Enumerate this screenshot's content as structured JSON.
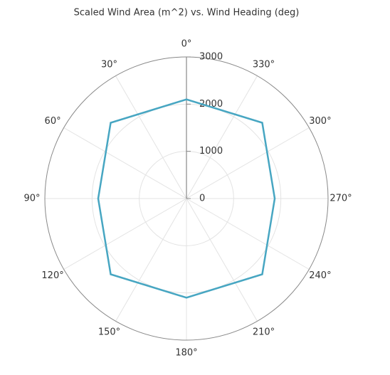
{
  "chart_data": {
    "type": "polar",
    "title": "Scaled Wind Area (m^2) vs. Wind Heading (deg)",
    "theta": [
      0,
      45,
      90,
      135,
      180,
      225,
      270,
      315
    ],
    "values": [
      2100,
      2270,
      1870,
      2270,
      2100,
      2270,
      1870,
      2270
    ],
    "color": "#47a6c2",
    "rlim": [
      0,
      3000
    ],
    "rticks": [
      0,
      1000,
      2000,
      3000
    ],
    "thetaticks": [
      {
        "value": 0,
        "label": "0°"
      },
      {
        "value": 30,
        "label": "30°"
      },
      {
        "value": 60,
        "label": "60°"
      },
      {
        "value": 90,
        "label": "90°"
      },
      {
        "value": 120,
        "label": "120°"
      },
      {
        "value": 150,
        "label": "150°"
      },
      {
        "value": 180,
        "label": "180°"
      },
      {
        "value": 210,
        "label": "210°"
      },
      {
        "value": 240,
        "label": "240°"
      },
      {
        "value": 270,
        "label": "270°"
      },
      {
        "value": 300,
        "label": "300°"
      },
      {
        "value": 330,
        "label": "330°"
      }
    ],
    "grid": true
  }
}
